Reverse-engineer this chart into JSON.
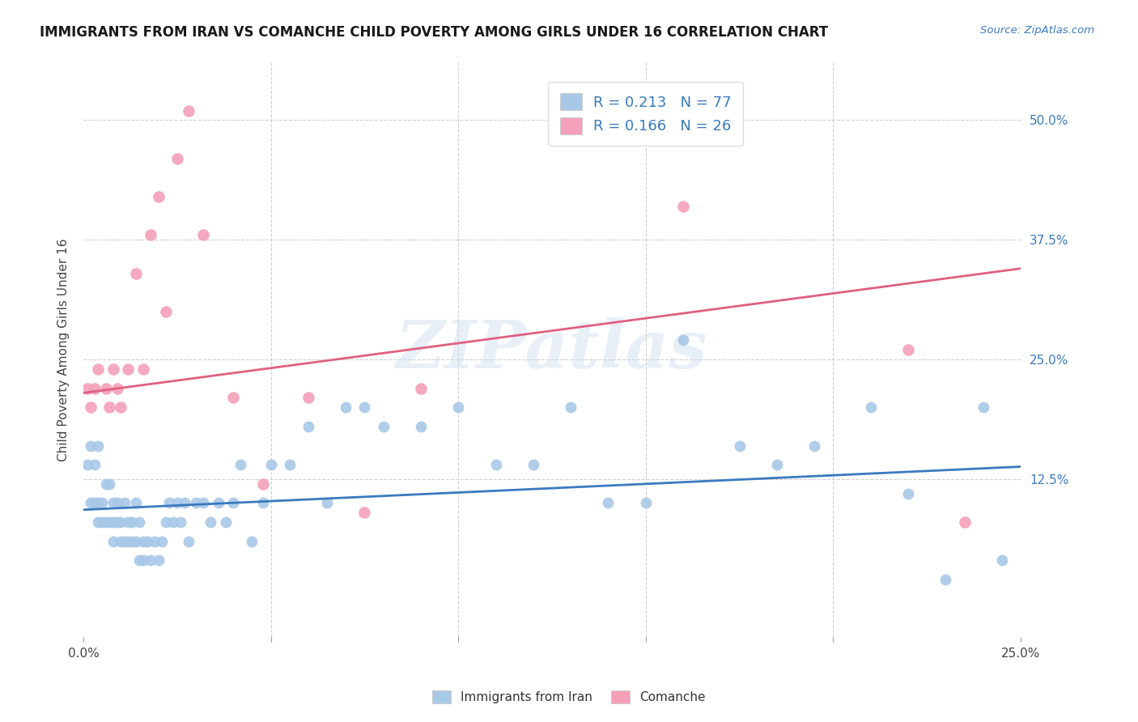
{
  "title": "IMMIGRANTS FROM IRAN VS COMANCHE CHILD POVERTY AMONG GIRLS UNDER 16 CORRELATION CHART",
  "source": "Source: ZipAtlas.com",
  "ylabel": "Child Poverty Among Girls Under 16",
  "ytick_labels": [
    "50.0%",
    "37.5%",
    "25.0%",
    "12.5%"
  ],
  "ytick_values": [
    0.5,
    0.375,
    0.25,
    0.125
  ],
  "xlim": [
    0.0,
    0.25
  ],
  "ylim": [
    -0.04,
    0.56
  ],
  "legend_label1": "R = 0.213   N = 77",
  "legend_label2": "R = 0.166   N = 26",
  "legend_bottom1": "Immigrants from Iran",
  "legend_bottom2": "Comanche",
  "color_blue": "#a8c8e8",
  "color_pink": "#f4a0b8",
  "line_color_blue": "#3a7abf",
  "line_color_pink": "#e06080",
  "watermark": "ZIPatlas",
  "blue_line_x0": 0.0,
  "blue_line_y0": 0.093,
  "blue_line_x1": 0.25,
  "blue_line_y1": 0.138,
  "pink_line_x0": 0.0,
  "pink_line_y0": 0.215,
  "pink_line_x1": 0.25,
  "pink_line_y1": 0.345,
  "blue_x": [
    0.001,
    0.002,
    0.002,
    0.003,
    0.003,
    0.004,
    0.004,
    0.004,
    0.005,
    0.005,
    0.006,
    0.006,
    0.007,
    0.007,
    0.008,
    0.008,
    0.008,
    0.009,
    0.009,
    0.01,
    0.01,
    0.011,
    0.011,
    0.012,
    0.012,
    0.013,
    0.013,
    0.014,
    0.014,
    0.015,
    0.015,
    0.016,
    0.016,
    0.017,
    0.018,
    0.019,
    0.02,
    0.021,
    0.022,
    0.023,
    0.024,
    0.025,
    0.026,
    0.027,
    0.028,
    0.03,
    0.032,
    0.034,
    0.036,
    0.038,
    0.04,
    0.042,
    0.045,
    0.048,
    0.05,
    0.055,
    0.06,
    0.065,
    0.07,
    0.075,
    0.08,
    0.09,
    0.1,
    0.11,
    0.12,
    0.13,
    0.14,
    0.15,
    0.16,
    0.175,
    0.185,
    0.195,
    0.21,
    0.22,
    0.23,
    0.24,
    0.245
  ],
  "blue_y": [
    0.14,
    0.16,
    0.1,
    0.14,
    0.1,
    0.16,
    0.1,
    0.08,
    0.1,
    0.08,
    0.12,
    0.08,
    0.08,
    0.12,
    0.1,
    0.08,
    0.06,
    0.1,
    0.08,
    0.08,
    0.06,
    0.1,
    0.06,
    0.08,
    0.06,
    0.08,
    0.06,
    0.1,
    0.06,
    0.08,
    0.04,
    0.06,
    0.04,
    0.06,
    0.04,
    0.06,
    0.04,
    0.06,
    0.08,
    0.1,
    0.08,
    0.1,
    0.08,
    0.1,
    0.06,
    0.1,
    0.1,
    0.08,
    0.1,
    0.08,
    0.1,
    0.14,
    0.06,
    0.1,
    0.14,
    0.14,
    0.18,
    0.1,
    0.2,
    0.2,
    0.18,
    0.18,
    0.2,
    0.14,
    0.14,
    0.2,
    0.1,
    0.1,
    0.27,
    0.16,
    0.14,
    0.16,
    0.2,
    0.11,
    0.02,
    0.2,
    0.04
  ],
  "pink_x": [
    0.001,
    0.002,
    0.003,
    0.004,
    0.006,
    0.007,
    0.008,
    0.009,
    0.01,
    0.012,
    0.014,
    0.016,
    0.018,
    0.02,
    0.022,
    0.025,
    0.028,
    0.032,
    0.04,
    0.048,
    0.06,
    0.075,
    0.09,
    0.16,
    0.22,
    0.235
  ],
  "pink_y": [
    0.22,
    0.2,
    0.22,
    0.24,
    0.22,
    0.2,
    0.24,
    0.22,
    0.2,
    0.24,
    0.34,
    0.24,
    0.38,
    0.42,
    0.3,
    0.46,
    0.51,
    0.38,
    0.21,
    0.12,
    0.21,
    0.09,
    0.22,
    0.41,
    0.26,
    0.08
  ]
}
